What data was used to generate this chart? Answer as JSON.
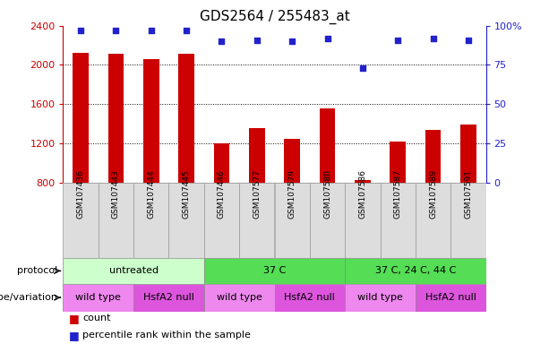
{
  "title": "GDS2564 / 255483_at",
  "samples": [
    "GSM107436",
    "GSM107443",
    "GSM107444",
    "GSM107445",
    "GSM107446",
    "GSM107577",
    "GSM107579",
    "GSM107580",
    "GSM107586",
    "GSM107587",
    "GSM107589",
    "GSM107591"
  ],
  "counts": [
    2120,
    2110,
    2060,
    2110,
    1200,
    1350,
    1240,
    1560,
    820,
    1220,
    1340,
    1390
  ],
  "percentile_ranks": [
    97,
    97,
    97,
    97,
    90,
    91,
    90,
    92,
    73,
    91,
    92,
    91
  ],
  "ylim_left": [
    800,
    2400
  ],
  "ylim_right": [
    0,
    100
  ],
  "yticks_left": [
    800,
    1200,
    1600,
    2000,
    2400
  ],
  "yticks_right": [
    0,
    25,
    50,
    75,
    100
  ],
  "bar_color": "#cc0000",
  "dot_color": "#2222cc",
  "grid_color": "#000000",
  "protocol_groups": [
    {
      "label": "untreated",
      "start": 0,
      "end": 4,
      "color": "#ccffcc"
    },
    {
      "label": "37 C",
      "start": 4,
      "end": 8,
      "color": "#55dd55"
    },
    {
      "label": "37 C, 24 C, 44 C",
      "start": 8,
      "end": 12,
      "color": "#55dd55"
    }
  ],
  "genotype_groups": [
    {
      "label": "wild type",
      "start": 0,
      "end": 2,
      "color": "#ee88ee"
    },
    {
      "label": "HsfA2 null",
      "start": 2,
      "end": 4,
      "color": "#dd55dd"
    },
    {
      "label": "wild type",
      "start": 4,
      "end": 6,
      "color": "#ee88ee"
    },
    {
      "label": "HsfA2 null",
      "start": 6,
      "end": 8,
      "color": "#dd55dd"
    },
    {
      "label": "wild type",
      "start": 8,
      "end": 10,
      "color": "#ee88ee"
    },
    {
      "label": "HsfA2 null",
      "start": 10,
      "end": 12,
      "color": "#dd55dd"
    }
  ],
  "protocol_label": "protocol",
  "genotype_label": "genotype/variation",
  "legend_count_label": "count",
  "legend_pct_label": "percentile rank within the sample",
  "bar_width": 0.45,
  "bg_color": "#ffffff",
  "tick_color_left": "#cc0000",
  "tick_color_right": "#2222cc",
  "sample_label_bg": "#dddddd",
  "sample_label_border": "#999999"
}
